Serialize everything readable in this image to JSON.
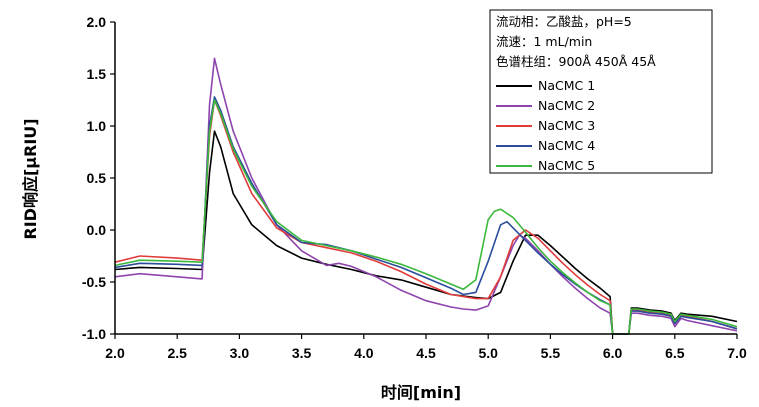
{
  "chart_data": {
    "type": "line",
    "xlabel": "时间[min]",
    "ylabel": "RID响应[μRIU]",
    "xlim": [
      2.0,
      7.0
    ],
    "ylim": [
      -1.0,
      2.0
    ],
    "x_ticks": [
      "2.0",
      "2.5",
      "3.0",
      "3.5",
      "4.0",
      "4.5",
      "5.0",
      "5.5",
      "6.0",
      "6.5",
      "7.0"
    ],
    "y_ticks": [
      "2.0",
      "1.5",
      "1.0",
      "0.5",
      "0.0",
      "-0.5",
      "-1.0"
    ],
    "grid": false,
    "legend_position": "top-right",
    "annotations": [
      "流动相：乙酸盐，pH=5",
      "流速：1 mL/min",
      "色谱柱组：900Å 450Å 45Å"
    ],
    "series": [
      {
        "name": "NaCMC 1",
        "color": "#000000",
        "x": [
          2.0,
          2.2,
          2.5,
          2.7,
          2.76,
          2.8,
          2.85,
          2.95,
          3.1,
          3.3,
          3.5,
          3.7,
          3.9,
          4.1,
          4.3,
          4.5,
          4.7,
          4.9,
          5.0,
          5.1,
          5.2,
          5.3,
          5.4,
          5.5,
          5.6,
          5.7,
          5.8,
          5.9,
          5.98,
          6.0,
          6.13,
          6.15,
          6.2,
          6.3,
          6.4,
          6.47,
          6.5,
          6.55,
          6.6,
          6.8,
          7.0
        ],
        "y": [
          -0.38,
          -0.36,
          -0.37,
          -0.38,
          0.55,
          0.95,
          0.8,
          0.35,
          0.05,
          -0.15,
          -0.27,
          -0.33,
          -0.38,
          -0.44,
          -0.48,
          -0.55,
          -0.62,
          -0.65,
          -0.66,
          -0.6,
          -0.3,
          -0.05,
          -0.05,
          -0.15,
          -0.26,
          -0.37,
          -0.47,
          -0.56,
          -0.64,
          -1.0,
          -1.0,
          -0.75,
          -0.75,
          -0.77,
          -0.78,
          -0.8,
          -0.87,
          -0.8,
          -0.81,
          -0.83,
          -0.88
        ]
      },
      {
        "name": "NaCMC 2",
        "color": "#8e44ad",
        "x": [
          2.0,
          2.2,
          2.5,
          2.7,
          2.76,
          2.8,
          2.85,
          2.95,
          3.1,
          3.3,
          3.5,
          3.7,
          3.8,
          3.9,
          4.1,
          4.3,
          4.5,
          4.7,
          4.8,
          4.9,
          5.0,
          5.1,
          5.2,
          5.25,
          5.3,
          5.4,
          5.5,
          5.6,
          5.7,
          5.8,
          5.9,
          5.98,
          6.0,
          6.13,
          6.15,
          6.2,
          6.3,
          6.4,
          6.47,
          6.5,
          6.55,
          6.6,
          6.8,
          7.0
        ],
        "y": [
          -0.45,
          -0.42,
          -0.45,
          -0.47,
          1.2,
          1.65,
          1.4,
          0.95,
          0.5,
          0.05,
          -0.2,
          -0.34,
          -0.32,
          -0.35,
          -0.45,
          -0.58,
          -0.68,
          -0.74,
          -0.76,
          -0.77,
          -0.73,
          -0.45,
          -0.15,
          -0.05,
          -0.08,
          -0.2,
          -0.33,
          -0.45,
          -0.56,
          -0.66,
          -0.75,
          -0.8,
          -1.0,
          -1.0,
          -0.8,
          -0.8,
          -0.82,
          -0.83,
          -0.85,
          -0.93,
          -0.85,
          -0.87,
          -0.92,
          -0.97
        ]
      },
      {
        "name": "NaCMC 3",
        "color": "#e03c3c",
        "x": [
          2.0,
          2.2,
          2.5,
          2.7,
          2.76,
          2.8,
          2.85,
          2.95,
          3.1,
          3.3,
          3.5,
          3.7,
          3.9,
          4.1,
          4.3,
          4.5,
          4.7,
          4.9,
          5.0,
          5.1,
          5.2,
          5.3,
          5.4,
          5.5,
          5.6,
          5.7,
          5.8,
          5.9,
          5.98,
          6.0,
          6.13,
          6.15,
          6.2,
          6.3,
          6.4,
          6.47,
          6.5,
          6.55,
          6.6,
          6.8,
          7.0
        ],
        "y": [
          -0.31,
          -0.25,
          -0.27,
          -0.29,
          0.9,
          1.25,
          1.1,
          0.75,
          0.35,
          0.02,
          -0.12,
          -0.17,
          -0.22,
          -0.3,
          -0.4,
          -0.52,
          -0.62,
          -0.66,
          -0.66,
          -0.45,
          -0.1,
          0.0,
          -0.08,
          -0.2,
          -0.32,
          -0.43,
          -0.53,
          -0.62,
          -0.68,
          -1.0,
          -1.0,
          -0.77,
          -0.77,
          -0.79,
          -0.8,
          -0.82,
          -0.9,
          -0.82,
          -0.83,
          -0.88,
          -0.95
        ]
      },
      {
        "name": "NaCMC 4",
        "color": "#2a4d9c",
        "x": [
          2.0,
          2.2,
          2.5,
          2.7,
          2.76,
          2.8,
          2.85,
          2.95,
          3.1,
          3.3,
          3.5,
          3.7,
          3.9,
          4.1,
          4.3,
          4.5,
          4.7,
          4.8,
          4.9,
          5.0,
          5.1,
          5.15,
          5.2,
          5.3,
          5.4,
          5.5,
          5.6,
          5.7,
          5.8,
          5.9,
          5.98,
          6.0,
          6.13,
          6.15,
          6.2,
          6.3,
          6.4,
          6.47,
          6.5,
          6.55,
          6.6,
          6.8,
          7.0
        ],
        "y": [
          -0.36,
          -0.32,
          -0.33,
          -0.34,
          1.0,
          1.28,
          1.15,
          0.8,
          0.45,
          0.05,
          -0.12,
          -0.14,
          -0.2,
          -0.28,
          -0.36,
          -0.46,
          -0.56,
          -0.62,
          -0.6,
          -0.3,
          0.05,
          0.08,
          0.02,
          -0.1,
          -0.22,
          -0.33,
          -0.43,
          -0.52,
          -0.6,
          -0.67,
          -0.72,
          -1.0,
          -1.0,
          -0.78,
          -0.78,
          -0.8,
          -0.81,
          -0.83,
          -0.9,
          -0.83,
          -0.84,
          -0.88,
          -0.95
        ]
      },
      {
        "name": "NaCMC 5",
        "color": "#3cb83c",
        "x": [
          2.0,
          2.2,
          2.5,
          2.7,
          2.76,
          2.8,
          2.85,
          2.95,
          3.1,
          3.3,
          3.5,
          3.7,
          3.9,
          4.1,
          4.3,
          4.5,
          4.7,
          4.8,
          4.9,
          5.0,
          5.05,
          5.1,
          5.2,
          5.3,
          5.4,
          5.5,
          5.6,
          5.7,
          5.8,
          5.9,
          5.98,
          6.0,
          6.13,
          6.15,
          6.2,
          6.3,
          6.4,
          6.47,
          6.5,
          6.55,
          6.6,
          6.8,
          7.0
        ],
        "y": [
          -0.34,
          -0.29,
          -0.3,
          -0.31,
          0.95,
          1.25,
          1.12,
          0.78,
          0.42,
          0.08,
          -0.1,
          -0.15,
          -0.2,
          -0.26,
          -0.33,
          -0.42,
          -0.52,
          -0.57,
          -0.48,
          0.1,
          0.18,
          0.2,
          0.12,
          -0.02,
          -0.17,
          -0.3,
          -0.41,
          -0.51,
          -0.6,
          -0.68,
          -0.72,
          -1.0,
          -1.0,
          -0.76,
          -0.76,
          -0.78,
          -0.79,
          -0.81,
          -0.88,
          -0.81,
          -0.82,
          -0.86,
          -0.93
        ]
      }
    ]
  }
}
